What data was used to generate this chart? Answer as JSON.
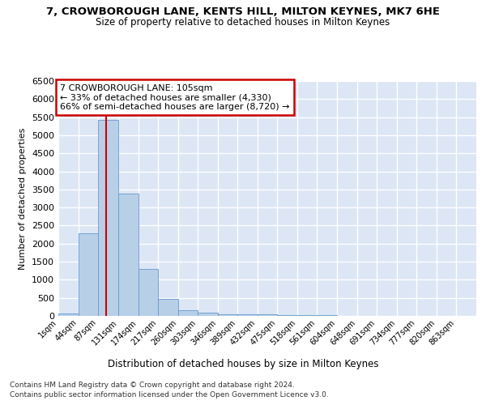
{
  "title1": "7, CROWBOROUGH LANE, KENTS HILL, MILTON KEYNES, MK7 6HE",
  "title2": "Size of property relative to detached houses in Milton Keynes",
  "xlabel": "Distribution of detached houses by size in Milton Keynes",
  "ylabel": "Number of detached properties",
  "bin_edges": [
    1,
    44,
    87,
    131,
    174,
    217,
    260,
    303,
    346,
    389,
    432,
    475,
    518,
    561,
    604,
    648,
    691,
    734,
    777,
    820,
    863
  ],
  "bar_heights": [
    70,
    2280,
    5430,
    3390,
    1310,
    480,
    165,
    80,
    50,
    45,
    35,
    25,
    20,
    15,
    10,
    8,
    5,
    3,
    2,
    1
  ],
  "bar_color": "#b8cfe8",
  "bar_edgecolor": "#6699cc",
  "property_value": 105,
  "vline_color": "#cc0000",
  "annotation_line1": "7 CROWBOROUGH LANE: 105sqm",
  "annotation_line2": "← 33% of detached houses are smaller (4,330)",
  "annotation_line3": "66% of semi-detached houses are larger (8,720) →",
  "annotation_box_color": "#cc0000",
  "ylim": [
    0,
    6500
  ],
  "background_color": "#dce6f5",
  "grid_color": "#ffffff",
  "footnote1": "Contains HM Land Registry data © Crown copyright and database right 2024.",
  "footnote2": "Contains public sector information licensed under the Open Government Licence v3.0."
}
